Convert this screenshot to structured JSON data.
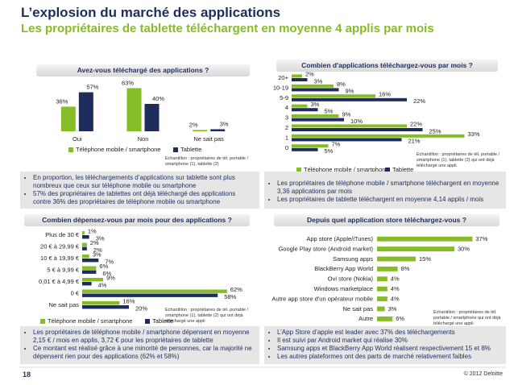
{
  "title": "L’explosion du marché des applications",
  "subtitle": "Les propriétaires de tablette téléchargent en moyenne 4 applis par mois",
  "page_number": "18",
  "copyright": "© 2012 Deloitte",
  "chart_data": [
    {
      "type": "bar",
      "title": "Avez-vous téléchargé des applications ?",
      "categories": [
        "Oui",
        "Non",
        "Ne sait pas"
      ],
      "series": [
        {
          "name": "Téléphone mobile / smartphone",
          "color": "#86bc25",
          "values": [
            36,
            63,
            2
          ],
          "value_labels": [
            "36%",
            "63%",
            "2%"
          ]
        },
        {
          "name": "Tablette",
          "color": "#1f2d5c",
          "values": [
            57,
            40,
            3
          ],
          "value_labels": [
            "57%",
            "40%",
            "3%"
          ]
        }
      ],
      "source": "Echantillon : propriétaires de tél. portable / smartphone (1), tablette (2)",
      "notes": [
        "En proportion, les téléchargements d’applications sur tablette sont plus nombreux que ceux sur téléphone mobile ou smartphone",
        "57% des propriétaires de tablettes ont déjà téléchargé des applications contre 36% des propriétaires de téléphone mobile ou smartphone"
      ]
    },
    {
      "type": "barh",
      "title": "Combien d'applications téléchargez-vous par mois ?",
      "categories": [
        "20+",
        "10-19",
        "5-9",
        "4",
        "3",
        "2",
        "1",
        "0"
      ],
      "series": [
        {
          "name": "Téléphone mobile / smartphone",
          "color": "#86bc25",
          "values": [
            2,
            8,
            16,
            3,
            9,
            22,
            33,
            7
          ],
          "value_labels": [
            "2%",
            "8%",
            "16%",
            "3%",
            "9%",
            "22%",
            "33%",
            "7%"
          ]
        },
        {
          "name": "Tablette",
          "color": "#1f2d5c",
          "values": [
            3,
            9,
            22,
            5,
            10,
            25,
            21,
            5
          ],
          "value_labels": [
            "3%",
            "9%",
            "22%",
            "5%",
            "10%",
            "25%",
            "21%",
            "5%"
          ]
        }
      ],
      "source": "Echantillon : propriétaires de tél. portable / smartphone (1), tablette (2) qui ont déjà téléchargé une appli",
      "notes": [
        "Les propriétaires de téléphone mobile / smartphone téléchargent en moyenne 3,36 applications par mois",
        "Les propriétaires de tablette téléchargent en moyenne 4,14 applis / mois"
      ]
    },
    {
      "type": "barh",
      "title": "Combien dépensez-vous par mois pour des applications ?",
      "categories": [
        "Plus de 30 €",
        "20 € à 29,99 €",
        "10 € à 19,99 €",
        "5 € à 9,99 €",
        "0,01 € à 4,99 €",
        "0 €",
        "Ne sait pas"
      ],
      "series": [
        {
          "name": "Téléphone mobile / smartphone",
          "color": "#86bc25",
          "values": [
            1,
            2,
            3,
            6,
            9,
            62,
            16
          ],
          "value_labels": [
            "1%",
            "2%",
            "3%",
            "6%",
            "9%",
            "62%",
            "16%"
          ]
        },
        {
          "name": "Tablette",
          "color": "#1f2d5c",
          "values": [
            3,
            2,
            7,
            6,
            4,
            58,
            20
          ],
          "value_labels": [
            "3%",
            "2%",
            "7%",
            "6%",
            "4%",
            "58%",
            "20%"
          ]
        }
      ],
      "source": "Echantillon : propriétaires de tél. portable / smartphone (1), tablette (2) qui ont déjà téléchargé une appli",
      "notes": [
        "Les propriétaires de téléphone mobile / smartphone dépensent en moyenne 2,15 € / mois en applis, 3,72 € pour les propriétaires de tablette",
        "Ce montant est réalisé grâce à une minorité de personnes, car la majorité ne dépensent rien pour des applications (62% et 58%)"
      ]
    },
    {
      "type": "barh",
      "title": "Depuis quel application store téléchargez-vous ?",
      "categories": [
        "App store (Apple/iTunes)",
        "Google Play store (Android market)",
        "Samsung apps",
        "BlackBerry App World",
        "Ovi store (Nokia)",
        "Windows marketplace",
        "Autre app store d'un opérateur mobile",
        "Ne sait pas",
        "Autre"
      ],
      "series": [
        {
          "color": "#86bc25",
          "values": [
            37,
            30,
            15,
            8,
            4,
            4,
            4,
            3,
            6
          ],
          "value_labels": [
            "37%",
            "30%",
            "15%",
            "8%",
            "4%",
            "4%",
            "4%",
            "3%",
            "6%"
          ]
        }
      ],
      "source": "Echantillon : propriétaires de tél. portable / smartphone qui ont déjà téléchargé une appli",
      "notes": [
        "L’App Store d’apple est leader avec 37% des téléchargements",
        "Il est suivi par Android market qui réalise 30%",
        "Samsung apps et BlackBerry App World réalisent respectivement 15 et 8%",
        "Les autres plateformes ont des parts de marché relativement faibles"
      ]
    }
  ]
}
